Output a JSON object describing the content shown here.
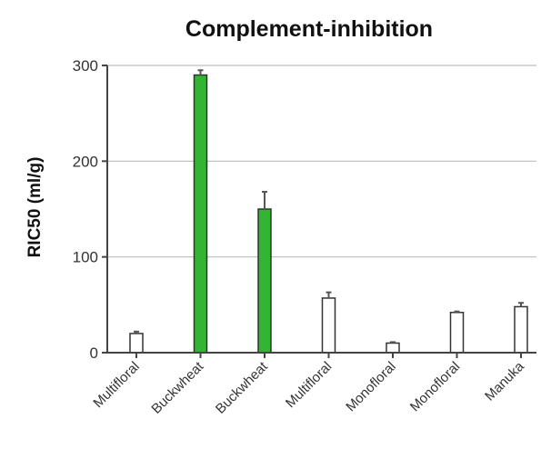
{
  "chart_data": {
    "type": "bar",
    "title": "Complement-inhibition",
    "xlabel": "",
    "ylabel": "RIC50 (ml/g)",
    "ylim": [
      0,
      300
    ],
    "yticks": [
      "0",
      "100",
      "200",
      "300"
    ],
    "ytick_values": [
      0,
      100,
      200,
      300
    ],
    "grid": true,
    "categories": [
      "Multifloral",
      "Buckwheat",
      "Buckwheat",
      "Multifloral",
      "Monofloral",
      "Monofloral",
      "Manuka"
    ],
    "values": [
      20,
      290,
      150,
      57,
      10,
      42,
      48
    ],
    "errors": [
      2,
      5,
      18,
      6,
      1,
      1,
      4
    ],
    "bar_colors": [
      "#ffffff",
      "#33b533",
      "#33b533",
      "#ffffff",
      "#ffffff",
      "#ffffff",
      "#ffffff"
    ]
  }
}
